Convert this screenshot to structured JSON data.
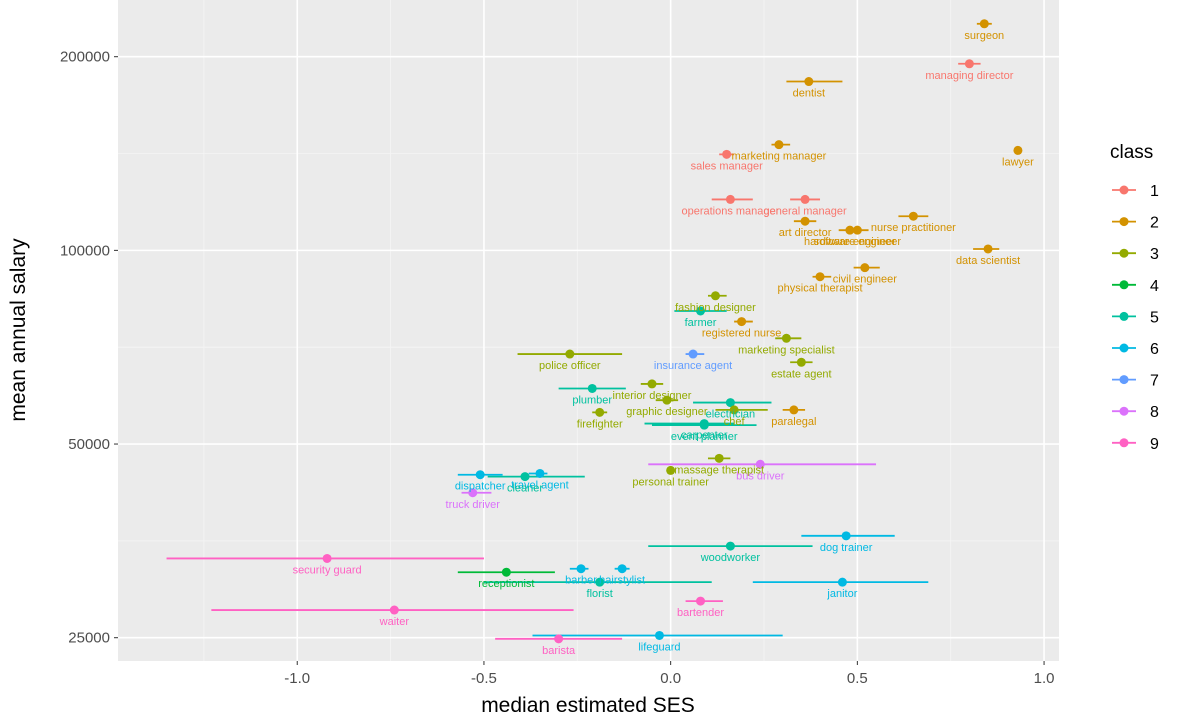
{
  "chart_data": {
    "type": "scatter",
    "xlabel": "median estimated SES",
    "ylabel": "mean annual salary",
    "xlim": [
      -1.48,
      1.04
    ],
    "ylog": true,
    "yrange": [
      23000,
      245000
    ],
    "xticks": [
      -1.0,
      -0.5,
      0.0,
      0.5,
      1.0
    ],
    "xtick_labels": [
      "-1.0",
      "-0.5",
      "0.0",
      "0.5",
      "1.0"
    ],
    "yticks": [
      25000,
      50000,
      100000,
      200000
    ],
    "ytick_labels": [
      "25000",
      "50000",
      "100000",
      "200000"
    ],
    "grid": true,
    "legend": {
      "title": "class",
      "position": "right",
      "labels": [
        "1",
        "2",
        "3",
        "4",
        "5",
        "6",
        "7",
        "8",
        "9"
      ]
    },
    "class_colors": [
      "#F8766D",
      "#D39200",
      "#93AA00",
      "#00BA38",
      "#00C19F",
      "#00B9E3",
      "#619CFF",
      "#DB72FB",
      "#FF61C3"
    ],
    "points": [
      {
        "label": "surgeon",
        "class": 2,
        "x": 0.84,
        "xlo": 0.82,
        "xhi": 0.86,
        "y": 225000
      },
      {
        "label": "managing director",
        "class": 1,
        "x": 0.8,
        "xlo": 0.77,
        "xhi": 0.83,
        "y": 195000
      },
      {
        "label": "dentist",
        "class": 2,
        "x": 0.37,
        "xlo": 0.31,
        "xhi": 0.46,
        "y": 183000
      },
      {
        "label": "lawyer",
        "class": 2,
        "x": 0.93,
        "xlo": 0.93,
        "xhi": 0.93,
        "y": 143000
      },
      {
        "label": "marketing manager",
        "class": 2,
        "x": 0.29,
        "xlo": 0.27,
        "xhi": 0.32,
        "y": 146000
      },
      {
        "label": "sales manager",
        "class": 1,
        "x": 0.15,
        "xlo": 0.13,
        "xhi": 0.17,
        "y": 141000
      },
      {
        "label": "operations manager",
        "class": 1,
        "x": 0.16,
        "xlo": 0.11,
        "xhi": 0.22,
        "y": 120000
      },
      {
        "label": "general manager",
        "class": 1,
        "x": 0.36,
        "xlo": 0.32,
        "xhi": 0.4,
        "y": 120000
      },
      {
        "label": "nurse practitioner",
        "class": 2,
        "x": 0.65,
        "xlo": 0.61,
        "xhi": 0.69,
        "y": 113000
      },
      {
        "label": "art director",
        "class": 2,
        "x": 0.36,
        "xlo": 0.33,
        "xhi": 0.39,
        "y": 111000
      },
      {
        "label": "software engineer",
        "class": 2,
        "x": 0.5,
        "xlo": 0.47,
        "xhi": 0.53,
        "y": 107500
      },
      {
        "label": "hardware engineer",
        "class": 2,
        "x": 0.48,
        "xlo": 0.45,
        "xhi": 0.51,
        "y": 107500
      },
      {
        "label": "data scientist",
        "class": 2,
        "x": 0.85,
        "xlo": 0.81,
        "xhi": 0.88,
        "y": 100500
      },
      {
        "label": "civil engineer",
        "class": 2,
        "x": 0.52,
        "xlo": 0.49,
        "xhi": 0.56,
        "y": 94000
      },
      {
        "label": "physical therapist",
        "class": 2,
        "x": 0.4,
        "xlo": 0.38,
        "xhi": 0.43,
        "y": 91000
      },
      {
        "label": "fashion designer",
        "class": 3,
        "x": 0.12,
        "xlo": 0.1,
        "xhi": 0.15,
        "y": 85000
      },
      {
        "label": "farmer",
        "class": 5,
        "x": 0.08,
        "xlo": 0.01,
        "xhi": 0.15,
        "y": 80500
      },
      {
        "label": "registered nurse",
        "class": 2,
        "x": 0.19,
        "xlo": 0.17,
        "xhi": 0.22,
        "y": 77500
      },
      {
        "label": "marketing specialist",
        "class": 3,
        "x": 0.31,
        "xlo": 0.28,
        "xhi": 0.35,
        "y": 73000
      },
      {
        "label": "police officer",
        "class": 3,
        "x": -0.27,
        "xlo": -0.41,
        "xhi": -0.13,
        "y": 69000
      },
      {
        "label": "insurance agent",
        "class": 7,
        "x": 0.06,
        "xlo": 0.04,
        "xhi": 0.09,
        "y": 69000
      },
      {
        "label": "estate agent",
        "class": 3,
        "x": 0.35,
        "xlo": 0.32,
        "xhi": 0.38,
        "y": 67000
      },
      {
        "label": "interior designer",
        "class": 3,
        "x": -0.05,
        "xlo": -0.08,
        "xhi": -0.02,
        "y": 62000
      },
      {
        "label": "plumber",
        "class": 5,
        "x": -0.21,
        "xlo": -0.3,
        "xhi": -0.12,
        "y": 61000
      },
      {
        "label": "graphic designer",
        "class": 3,
        "x": -0.01,
        "xlo": -0.04,
        "xhi": 0.02,
        "y": 58500
      },
      {
        "label": "electrician",
        "class": 5,
        "x": 0.16,
        "xlo": 0.06,
        "xhi": 0.27,
        "y": 58000
      },
      {
        "label": "chef",
        "class": 3,
        "x": 0.17,
        "xlo": 0.12,
        "xhi": 0.26,
        "y": 56500
      },
      {
        "label": "event planner",
        "class": 5,
        "x": 0.09,
        "xlo": -0.05,
        "xhi": 0.23,
        "y": 53500
      },
      {
        "label": "firefighter",
        "class": 3,
        "x": -0.19,
        "xlo": -0.21,
        "xhi": -0.17,
        "y": 56000
      },
      {
        "label": "paralegal",
        "class": 2,
        "x": 0.33,
        "xlo": 0.3,
        "xhi": 0.36,
        "y": 56500
      },
      {
        "label": "carpenter",
        "class": 5,
        "x": 0.09,
        "xlo": -0.07,
        "xhi": 0.17,
        "y": 53800
      },
      {
        "label": "massage therapist",
        "class": 3,
        "x": 0.13,
        "xlo": 0.1,
        "xhi": 0.16,
        "y": 47500
      },
      {
        "label": "personal trainer",
        "class": 3,
        "x": 0.0,
        "xlo": -0.01,
        "xhi": 0.01,
        "y": 45500
      },
      {
        "label": "bus driver",
        "class": 8,
        "x": 0.24,
        "xlo": -0.06,
        "xhi": 0.55,
        "y": 46500
      },
      {
        "label": "travel agent",
        "class": 6,
        "x": -0.35,
        "xlo": -0.38,
        "xhi": -0.33,
        "y": 45000
      },
      {
        "label": "cleaner",
        "class": 5,
        "x": -0.39,
        "xlo": -0.49,
        "xhi": -0.23,
        "y": 44500
      },
      {
        "label": "dispatcher",
        "class": 6,
        "x": -0.51,
        "xlo": -0.57,
        "xhi": -0.45,
        "y": 44800
      },
      {
        "label": "truck driver",
        "class": 8,
        "x": -0.53,
        "xlo": -0.56,
        "xhi": -0.48,
        "y": 42000
      },
      {
        "label": "dog trainer",
        "class": 6,
        "x": 0.47,
        "xlo": 0.35,
        "xhi": 0.6,
        "y": 36000
      },
      {
        "label": "woodworker",
        "class": 5,
        "x": 0.16,
        "xlo": -0.06,
        "xhi": 0.38,
        "y": 34700
      },
      {
        "label": "security guard",
        "class": 9,
        "x": -0.92,
        "xlo": -1.35,
        "xhi": -0.5,
        "y": 33200
      },
      {
        "label": "receptionist",
        "class": 4,
        "x": -0.44,
        "xlo": -0.57,
        "xhi": -0.31,
        "y": 31600
      },
      {
        "label": "barber",
        "class": 6,
        "x": -0.24,
        "xlo": -0.27,
        "xhi": -0.22,
        "y": 32000
      },
      {
        "label": "hairstylist",
        "class": 6,
        "x": -0.13,
        "xlo": -0.15,
        "xhi": -0.11,
        "y": 32000
      },
      {
        "label": "florist",
        "class": 5,
        "x": -0.19,
        "xlo": -0.5,
        "xhi": 0.11,
        "y": 30500
      },
      {
        "label": "janitor",
        "class": 6,
        "x": 0.46,
        "xlo": 0.22,
        "xhi": 0.69,
        "y": 30500
      },
      {
        "label": "bartender",
        "class": 9,
        "x": 0.08,
        "xlo": 0.04,
        "xhi": 0.14,
        "y": 28500
      },
      {
        "label": "waiter",
        "class": 9,
        "x": -0.74,
        "xlo": -1.23,
        "xhi": -0.26,
        "y": 27600
      },
      {
        "label": "lifeguard",
        "class": 6,
        "x": -0.03,
        "xlo": -0.37,
        "xhi": 0.3,
        "y": 25200
      },
      {
        "label": "barista",
        "class": 9,
        "x": -0.3,
        "xlo": -0.47,
        "xhi": -0.13,
        "y": 24900
      }
    ]
  }
}
